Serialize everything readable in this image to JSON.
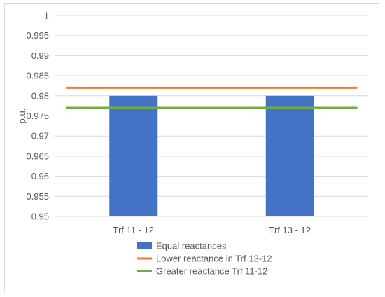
{
  "chart_data": {
    "type": "bar",
    "title": "",
    "xlabel": "",
    "ylabel": "p.u.",
    "ylim": [
      0.95,
      1
    ],
    "ytick_step": 0.005,
    "yticks": [
      "0.95",
      "0.955",
      "0.96",
      "0.965",
      "0.97",
      "0.975",
      "0.98",
      "0.985",
      "0.99",
      "0.995",
      "1"
    ],
    "categories": [
      "Trf 11 - 12",
      "Trf 13 - 12"
    ],
    "grid": true,
    "legend_placement": "bottom",
    "series": [
      {
        "name": "Equal reactances",
        "kind": "bar",
        "color": "#4472C4",
        "values": [
          0.98,
          0.98
        ]
      },
      {
        "name": "Lower reactance in Trf 13-12",
        "kind": "line",
        "color": "#ED7D31",
        "values": [
          0.982,
          0.982
        ]
      },
      {
        "name": "Greater reactance Trf 11-12",
        "kind": "line",
        "color": "#70AD47",
        "values": [
          0.977,
          0.977
        ]
      }
    ]
  }
}
